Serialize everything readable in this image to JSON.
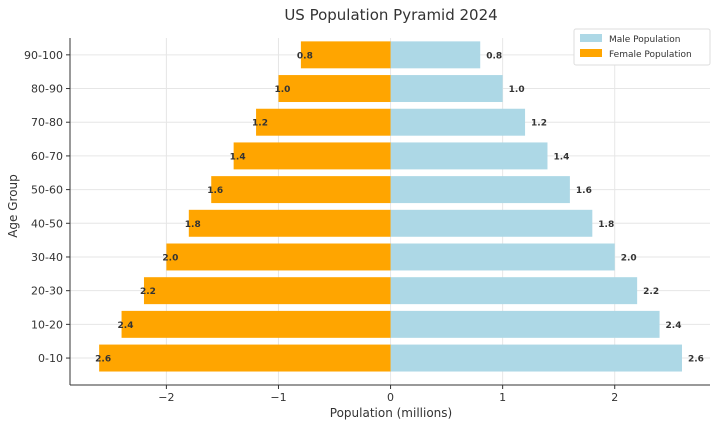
{
  "chart_data": {
    "type": "bar",
    "orientation": "horizontal",
    "title": "US Population Pyramid 2024",
    "xlabel": "Population (millions)",
    "ylabel": "Age Group",
    "categories": [
      "0-10",
      "10-20",
      "20-30",
      "30-40",
      "40-50",
      "50-60",
      "60-70",
      "70-80",
      "80-90",
      "90-100"
    ],
    "series": [
      {
        "name": "Male Population",
        "color": "#add8e6",
        "values": [
          2.6,
          2.4,
          2.2,
          2.0,
          1.8,
          1.6,
          1.4,
          1.2,
          1.0,
          0.8
        ]
      },
      {
        "name": "Female Population",
        "color": "#ffa500",
        "values": [
          -2.6,
          -2.4,
          -2.2,
          -2.0,
          -1.8,
          -1.6,
          -1.4,
          -1.2,
          -1.0,
          -0.8
        ]
      }
    ],
    "data_labels": {
      "male": [
        "2.6",
        "2.4",
        "2.2",
        "2.0",
        "1.8",
        "1.6",
        "1.4",
        "1.2",
        "1.0",
        "0.8"
      ],
      "female": [
        "2.6",
        "2.4",
        "2.2",
        "2.0",
        "1.8",
        "1.6",
        "1.4",
        "1.2",
        "1.0",
        "0.8"
      ]
    },
    "xticks": [
      -2,
      -1,
      0,
      1,
      2
    ],
    "xtick_labels": [
      "−2",
      "−1",
      "0",
      "1",
      "2"
    ],
    "xlim": [
      -2.86,
      2.85
    ],
    "grid": true,
    "legend": "top-right"
  }
}
